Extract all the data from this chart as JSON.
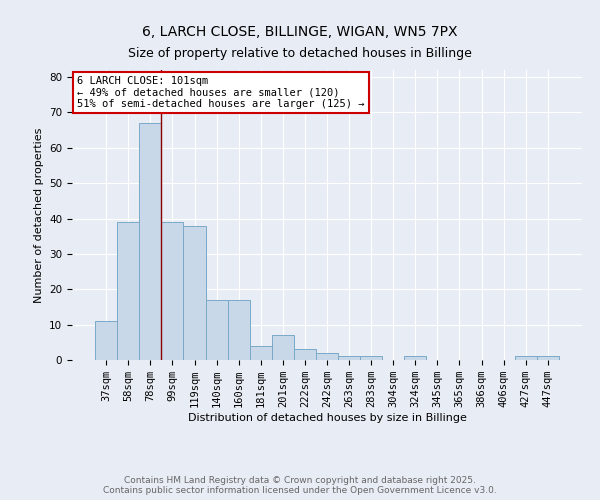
{
  "title": "6, LARCH CLOSE, BILLINGE, WIGAN, WN5 7PX",
  "subtitle": "Size of property relative to detached houses in Billinge",
  "xlabel": "Distribution of detached houses by size in Billinge",
  "ylabel": "Number of detached properties",
  "categories": [
    "37sqm",
    "58sqm",
    "78sqm",
    "99sqm",
    "119sqm",
    "140sqm",
    "160sqm",
    "181sqm",
    "201sqm",
    "222sqm",
    "242sqm",
    "263sqm",
    "283sqm",
    "304sqm",
    "324sqm",
    "345sqm",
    "365sqm",
    "386sqm",
    "406sqm",
    "427sqm",
    "447sqm"
  ],
  "values": [
    11,
    39,
    67,
    39,
    38,
    17,
    17,
    4,
    7,
    3,
    2,
    1,
    1,
    0,
    1,
    0,
    0,
    0,
    0,
    1,
    1
  ],
  "bar_color": "#c8d8e8",
  "bar_edge_color": "#7aaac8",
  "vline_color": "#8b0000",
  "annotation_text_line1": "6 LARCH CLOSE: 101sqm",
  "annotation_text_line2": "← 49% of detached houses are smaller (120)",
  "annotation_text_line3": "51% of semi-detached houses are larger (125) →",
  "annotation_box_color": "#ffffff",
  "annotation_border_color": "#cc0000",
  "ylim": [
    0,
    82
  ],
  "yticks": [
    0,
    10,
    20,
    30,
    40,
    50,
    60,
    70,
    80
  ],
  "footer_line1": "Contains HM Land Registry data © Crown copyright and database right 2025.",
  "footer_line2": "Contains public sector information licensed under the Open Government Licence v3.0.",
  "background_color": "#e8ecf4",
  "plot_bg_color": "#e8ecf4",
  "title_fontsize": 10,
  "subtitle_fontsize": 9,
  "tick_fontsize": 7.5,
  "label_fontsize": 8,
  "footer_fontsize": 6.5
}
